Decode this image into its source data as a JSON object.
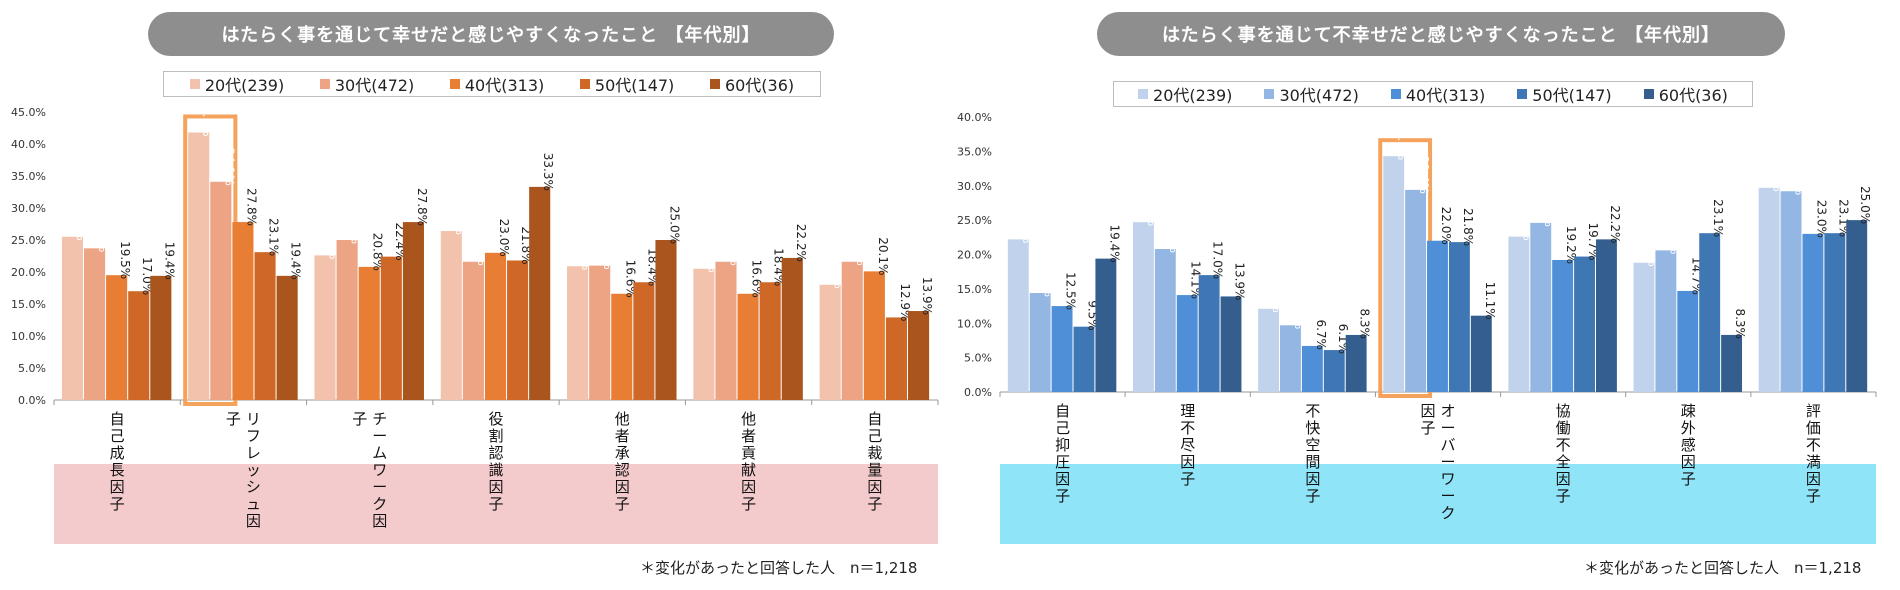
{
  "chart_data": [
    {
      "type": "bar",
      "title": "はたらく事を通じて幸せだと感じやすくなったこと 【年代別】",
      "categories": [
        "自己成長因子",
        "リフレッシュ因子",
        "チームワーク因子",
        "役割認識因子",
        "他者承認因子",
        "他者貢献因子",
        "自己裁量因子"
      ],
      "series": [
        {
          "name": "20代(239)",
          "color": "#f2c2ad",
          "values": [
            25.5,
            41.8,
            22.6,
            26.4,
            20.9,
            20.5,
            18.0
          ]
        },
        {
          "name": "30代(472)",
          "color": "#eda485",
          "values": [
            23.7,
            34.1,
            25.0,
            21.6,
            21.0,
            21.6,
            21.6
          ]
        },
        {
          "name": "40代(313)",
          "color": "#e87d34",
          "values": [
            19.5,
            27.8,
            20.8,
            23.0,
            16.6,
            16.6,
            20.1
          ]
        },
        {
          "name": "50代(147)",
          "color": "#cf6827",
          "values": [
            17.0,
            23.1,
            22.4,
            21.8,
            18.4,
            18.4,
            12.9
          ]
        },
        {
          "name": "60代(36)",
          "color": "#a9551d",
          "values": [
            19.4,
            19.4,
            27.8,
            33.3,
            25.0,
            22.2,
            13.9
          ]
        }
      ],
      "data_labels": [
        [
          "25.5%",
          "41.8%",
          "22.6%",
          "26.4%",
          "20.9%",
          "20.5%",
          "18.0%"
        ],
        [
          "23.7%",
          "34.1%",
          "25.0%",
          "21.6%",
          "21.0%",
          "21.6%",
          "21.6%"
        ],
        [
          "19.5%",
          "27.8%",
          "20.8%",
          "23.0%",
          "16.6%",
          "16.6%",
          "20.1%"
        ],
        [
          "17.0%",
          "23.1%",
          "22.4%",
          "21.8%",
          "18.4%",
          "18.4%",
          "12.9%"
        ],
        [
          "19.4%",
          "19.4%",
          "27.8%",
          "33.3%",
          "25.0%",
          "22.2%",
          "13.9%"
        ]
      ],
      "ylim": [
        0,
        45
      ],
      "ytick_labels": [
        "0.0%",
        "5.0%",
        "10.0%",
        "15.0%",
        "20.0%",
        "25.0%",
        "30.0%",
        "35.0%",
        "40.0%",
        "45.0%"
      ],
      "highlight_category": 1,
      "highlight_color": "#f5a35c",
      "band_color": "#f4cbcd",
      "footnote": "＊変化があったと回答した人　n＝1,218"
    },
    {
      "type": "bar",
      "title": "はたらく事を通じて不幸せだと感じやすくなったこと 【年代別】",
      "categories": [
        "自己抑圧因子",
        "理不尽因子",
        "不快空間因子",
        "オーバーワーク因子",
        "協働不全因子",
        "疎外感因子",
        "評価不満因子"
      ],
      "series": [
        {
          "name": "20代(239)",
          "color": "#c1d3ec",
          "values": [
            22.2,
            24.7,
            12.1,
            34.3,
            22.6,
            18.8,
            29.7
          ]
        },
        {
          "name": "30代(472)",
          "color": "#93b6e3",
          "values": [
            14.4,
            20.8,
            9.7,
            29.4,
            24.6,
            20.6,
            29.2
          ]
        },
        {
          "name": "40代(313)",
          "color": "#4f8fd8",
          "values": [
            12.5,
            14.1,
            6.7,
            22.0,
            19.2,
            14.7,
            23.0
          ]
        },
        {
          "name": "50代(147)",
          "color": "#3f76b4",
          "values": [
            9.5,
            17.0,
            6.1,
            21.8,
            19.7,
            23.1,
            23.1
          ]
        },
        {
          "name": "60代(36)",
          "color": "#335e8e",
          "values": [
            19.4,
            13.9,
            8.3,
            11.1,
            22.2,
            8.3,
            25.0
          ]
        }
      ],
      "data_labels": [
        [
          "22.2%",
          "24.7%",
          "12.1%",
          "34.3%",
          "22.6%",
          "18.8%",
          "29.7%"
        ],
        [
          "14.4%",
          "20.8%",
          "9.7%",
          "29.4%",
          "24.6%",
          "20.6%",
          "29.2%"
        ],
        [
          "12.5%",
          "14.1%",
          "6.7%",
          "22.0%",
          "19.2%",
          "14.7%",
          "23.0%"
        ],
        [
          "9.5%",
          "17.0%",
          "6.1%",
          "21.8%",
          "19.7%",
          "23.1%",
          "23.1%"
        ],
        [
          "19.4%",
          "13.9%",
          "8.3%",
          "11.1%",
          "22.2%",
          "8.3%",
          "25.0%"
        ]
      ],
      "ylim": [
        0,
        40
      ],
      "ytick_labels": [
        "0.0%",
        "5.0%",
        "10.0%",
        "15.0%",
        "20.0%",
        "25.0%",
        "30.0%",
        "35.0%",
        "40.0%"
      ],
      "highlight_category": 3,
      "highlight_color": "#f5a35c",
      "band_color": "#8fe5f7",
      "footnote": "＊変化があったと回答した人　n＝1,218"
    }
  ]
}
